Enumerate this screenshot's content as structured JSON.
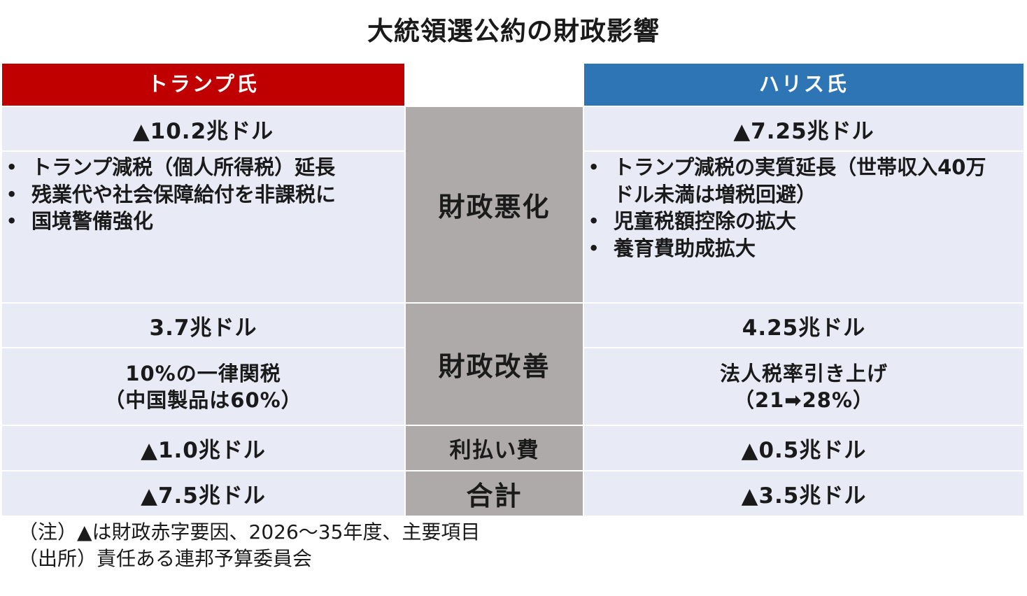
{
  "title": "大統領選公約の財政影響",
  "candidates": {
    "trump": {
      "name": "トランプ氏",
      "worsening_total": "▲10.2兆ドル",
      "worsening_items": [
        "トランプ減税（個人所得税）延長",
        "残業代や社会保障給付を非課税に",
        "国境警備強化"
      ],
      "improvement_total": "3.7兆ドル",
      "improvement_line1": "10%の一律関税",
      "improvement_line2": "（中国製品は60%）",
      "interest": "▲1.0兆ドル",
      "total": "▲7.5兆ドル"
    },
    "harris": {
      "name": "ハリス氏",
      "worsening_total": "▲7.25兆ドル",
      "worsening_items": [
        "トランプ減税の実質延長（世帯収入40万ドル未満は増税回避）",
        "児童税額控除の拡大",
        "養育費助成拡大"
      ],
      "improvement_total": "4.25兆ドル",
      "improvement_line1": "法人税率引き上げ",
      "improvement_line2": "（21➡28%）",
      "interest": "▲0.5兆ドル",
      "total": "▲3.5兆ドル"
    }
  },
  "categories": {
    "worsening": "財政悪化",
    "improvement": "財政改善",
    "interest": "利払い費",
    "total": "合計"
  },
  "notes": {
    "note": "（注）▲は財政赤字要因、2026～35年度、主要項目",
    "source": "（出所）責任ある連邦予算委員会"
  },
  "colors": {
    "trump_header": "#c00000",
    "harris_header": "#2e75b6",
    "row_background": "#e8eaf5",
    "category_background": "#aeaaaa"
  }
}
